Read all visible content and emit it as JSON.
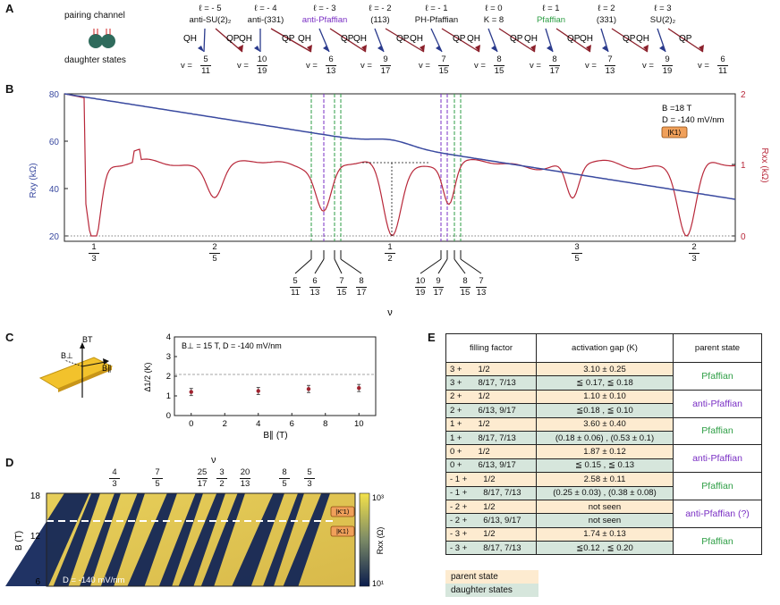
{
  "panels": {
    "a": "A",
    "b": "B",
    "c": "C",
    "d": "D",
    "e": "E"
  },
  "panelA": {
    "pairing_label": "pairing channel",
    "daughter_label": "daughter states",
    "qh": "QH",
    "qp": "QP",
    "channels": [
      {
        "l": "ℓ = - 5",
        "name": "anti-SU(2)₂",
        "color": "#111111"
      },
      {
        "l": "ℓ = - 4",
        "name": "anti-(331)",
        "color": "#111111"
      },
      {
        "l": "ℓ = - 3",
        "name": "anti-Pfaffian",
        "color": "#7a2fc4"
      },
      {
        "l": "ℓ = - 2",
        "name": "(113)",
        "color": "#111111"
      },
      {
        "l": "ℓ = - 1",
        "name": "PH-Pfaffian",
        "color": "#111111"
      },
      {
        "l": "ℓ = 0",
        "name": "K = 8",
        "color": "#111111"
      },
      {
        "l": "ℓ = 1",
        "name": "Pfaffian",
        "color": "#2e9e45"
      },
      {
        "l": "ℓ = 2",
        "name": "(331)",
        "color": "#111111"
      },
      {
        "l": "ℓ = 3",
        "name": "SU(2)₂",
        "color": "#111111"
      }
    ],
    "nu_prefix": "v =",
    "fractions": [
      [
        "5",
        "11"
      ],
      [
        "10",
        "19"
      ],
      [
        "6",
        "13"
      ],
      [
        "9",
        "17"
      ],
      [
        "7",
        "15"
      ],
      [
        "8",
        "15"
      ],
      [
        "8",
        "17"
      ],
      [
        "7",
        "13"
      ],
      [
        "9",
        "19"
      ],
      [
        "6",
        "11"
      ]
    ]
  },
  "panelB": {
    "yleft_label": "Rxy (kΩ)",
    "yright_label": "Rxx (kΩ)",
    "xlabel": "ν",
    "left_ticks": [
      "80",
      "60",
      "40",
      "20"
    ],
    "right_ticks": [
      "2",
      "1",
      "0"
    ],
    "main_fracs": [
      [
        "1",
        "3"
      ],
      [
        "2",
        "5"
      ],
      [
        "1",
        "2"
      ],
      [
        "3",
        "5"
      ],
      [
        "2",
        "3"
      ]
    ],
    "lower_fracs": [
      [
        "5",
        "11"
      ],
      [
        "6",
        "13"
      ],
      [
        "7",
        "15"
      ],
      [
        "8",
        "17"
      ],
      [
        "10",
        "19"
      ],
      [
        "9",
        "17"
      ],
      [
        "8",
        "15"
      ],
      [
        "7",
        "13"
      ]
    ],
    "field": "B =18 T",
    "disp": "D = -140 mV/nm",
    "badge": "|K1⟩",
    "colors": {
      "rxy": "#3a4aa0",
      "rxx": "#b8283a",
      "purple": "#7a2fc4",
      "green": "#2e9e45"
    }
  },
  "panelC": {
    "bperp": "B⊥",
    "bt": "BT",
    "bpar": "B∥",
    "annotation": "B⊥ = 15 T, D = -140 mV/nm",
    "ylabel": "Δ1/2 (K)",
    "xlabel": "B∥ (T)",
    "xticks": [
      "0",
      "2",
      "4",
      "6",
      "8",
      "10"
    ],
    "yticks": [
      "4",
      "3",
      "2",
      "1",
      "0"
    ],
    "chart_data": {
      "type": "scatter",
      "x": [
        0,
        4,
        7,
        10
      ],
      "y": [
        1.2,
        1.25,
        1.35,
        1.4
      ],
      "ylim": [
        0,
        4
      ],
      "xlim": [
        -1,
        11
      ]
    }
  },
  "panelD": {
    "top_label": "ν",
    "fracs": [
      [
        "4",
        "3"
      ],
      [
        "7",
        "5"
      ],
      [
        "25",
        "17"
      ],
      [
        "3",
        "2"
      ],
      [
        "20",
        "13"
      ],
      [
        "8",
        "5"
      ],
      [
        "5",
        "3"
      ]
    ],
    "yticks": [
      "18",
      "12",
      "6"
    ],
    "ylabel": "B (T)",
    "disp": "D = -140 mV/nm",
    "badge1": "|K'1⟩",
    "badge2": "|K1⟩",
    "cbar_top": "10³",
    "cbar_bot": "10¹",
    "cbar_label": "Rxx (Ω)"
  },
  "panelE": {
    "headers": [
      "filling factor",
      "activation gap (K)",
      "parent state"
    ],
    "rows": [
      {
        "l": "3 +",
        "parent": {
          "f": "1/2",
          "gap": "3.10 ± 0.25"
        },
        "daughter": {
          "f": "8/17, 7/13",
          "gap": "≦ 0.17, ≦ 0.18"
        },
        "state": "Pfaffian",
        "color": "#2e9e45"
      },
      {
        "l": "2 +",
        "parent": {
          "f": "1/2",
          "gap": "1.10 ± 0.10"
        },
        "daughter": {
          "f": "6/13, 9/17",
          "gap": "≦0.18 , ≦ 0.10"
        },
        "state": "anti-Pfaffian",
        "color": "#7a2fc4"
      },
      {
        "l": "1 +",
        "parent": {
          "f": "1/2",
          "gap": "3.60 ± 0.40"
        },
        "daughter": {
          "f": "8/17, 7/13",
          "gap": "(0.18 ± 0.06) , (0.53 ± 0.1)"
        },
        "state": "Pfaffian",
        "color": "#2e9e45"
      },
      {
        "l": "0 +",
        "parent": {
          "f": "1/2",
          "gap": "1.87 ± 0.12"
        },
        "daughter": {
          "f": "6/13, 9/17",
          "gap": "≦ 0.15 , ≦ 0.13"
        },
        "state": "anti-Pfaffian",
        "color": "#7a2fc4"
      },
      {
        "l": "- 1 +",
        "parent": {
          "f": "1/2",
          "gap": "2.58 ± 0.11"
        },
        "daughter": {
          "f": "8/17, 7/13",
          "gap": "(0.25 ± 0.03) , (0.38 ± 0.08)"
        },
        "state": "Pfaffian",
        "color": "#2e9e45"
      },
      {
        "l": "- 2 +",
        "parent": {
          "f": "1/2",
          "gap": "not seen"
        },
        "daughter": {
          "f": "6/13, 9/17",
          "gap": "not seen"
        },
        "state": "anti-Pfaffian (?)",
        "color": "#7a2fc4"
      },
      {
        "l": "- 3 +",
        "parent": {
          "f": "1/2",
          "gap": "1.74 ± 0.13"
        },
        "daughter": {
          "f": "8/17, 7/13",
          "gap": "≦0.12 , ≦ 0.20"
        },
        "state": "Pfaffian",
        "color": "#2e9e45"
      }
    ],
    "legend_parent": "parent state",
    "legend_daughter": "daughter states",
    "colors": {
      "parent": "#fdebd0",
      "daughter": "#d6e6dc"
    }
  }
}
